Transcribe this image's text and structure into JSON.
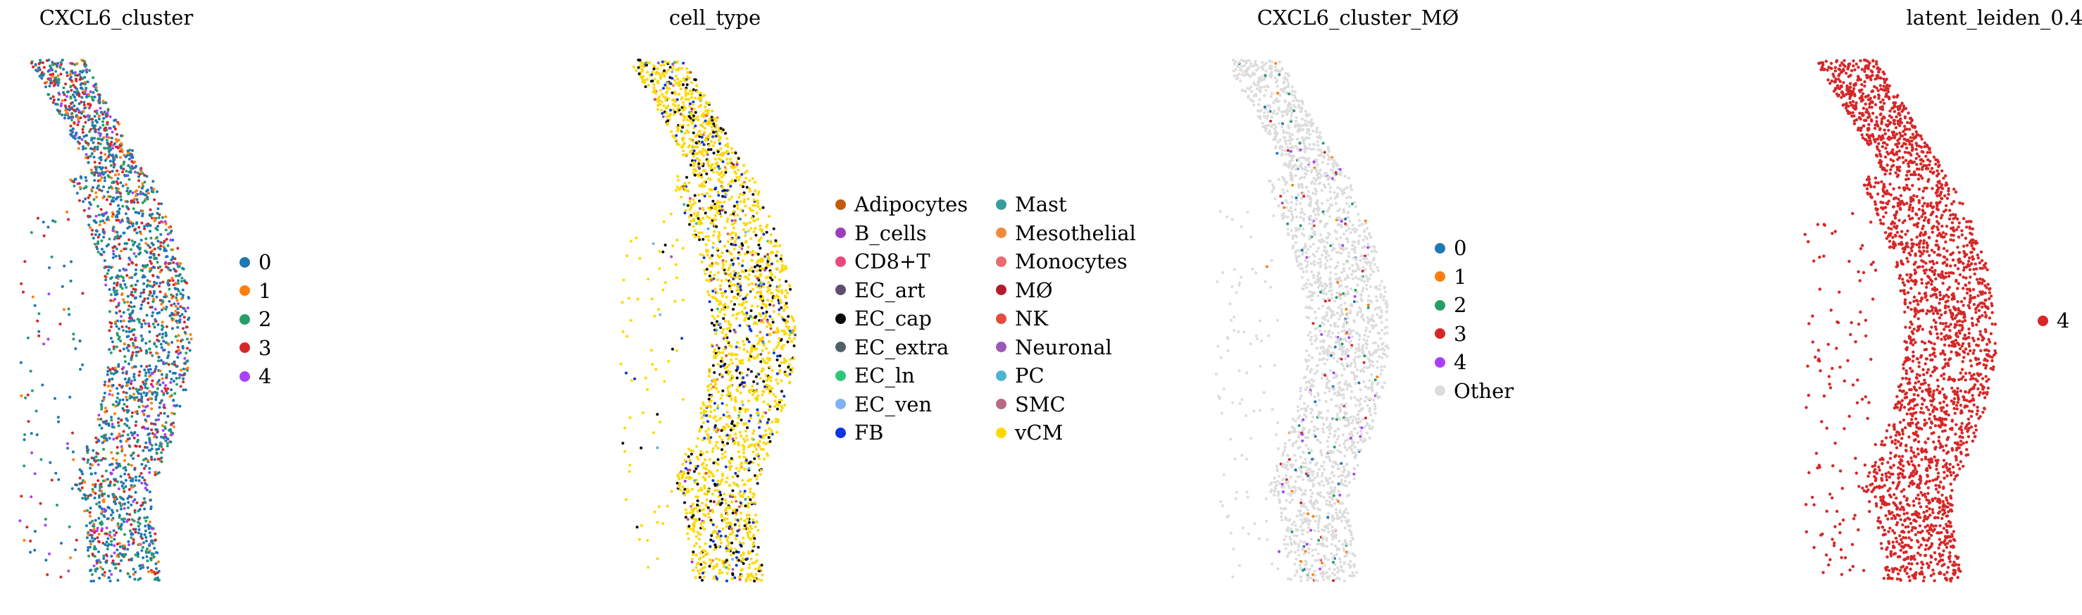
{
  "chart_data": [
    {
      "type": "scatter",
      "title": "CXCL6_cluster",
      "legend": "right",
      "series": [
        {
          "name": "0",
          "color": "#1f77b4"
        },
        {
          "name": "1",
          "color": "#ff7f0e"
        },
        {
          "name": "2",
          "color": "#279e68"
        },
        {
          "name": "3",
          "color": "#d62728"
        },
        {
          "name": "4",
          "color": "#aa40fc"
        }
      ]
    },
    {
      "type": "scatter",
      "title": "cell_type",
      "legend": "right",
      "series": [
        {
          "name": "Adipocytes",
          "color": "#c4580c"
        },
        {
          "name": "B_cells",
          "color": "#9b3fbf"
        },
        {
          "name": "CD8+T",
          "color": "#e8497a"
        },
        {
          "name": "EC_art",
          "color": "#5e4d6e"
        },
        {
          "name": "EC_cap",
          "color": "#0a0a0a"
        },
        {
          "name": "EC_extra",
          "color": "#50616b"
        },
        {
          "name": "EC_ln",
          "color": "#2ec77a"
        },
        {
          "name": "EC_ven",
          "color": "#7fb2f2"
        },
        {
          "name": "FB",
          "color": "#0b36e6"
        },
        {
          "name": "Mast",
          "color": "#389d9a"
        },
        {
          "name": "Mesothelial",
          "color": "#f28a3c"
        },
        {
          "name": "Monocytes",
          "color": "#e86c6c"
        },
        {
          "name": "MØ",
          "color": "#b31b2c"
        },
        {
          "name": "NK",
          "color": "#e34d3e"
        },
        {
          "name": "Neuronal",
          "color": "#9b59b6"
        },
        {
          "name": "PC",
          "color": "#4ab6d1"
        },
        {
          "name": "SMC",
          "color": "#b86a84"
        },
        {
          "name": "vCM",
          "color": "#ffd800"
        }
      ]
    },
    {
      "type": "scatter",
      "title": "CXCL6_cluster_MØ",
      "legend": "right",
      "series": [
        {
          "name": "0",
          "color": "#1f77b4"
        },
        {
          "name": "1",
          "color": "#ff7f0e"
        },
        {
          "name": "2",
          "color": "#279e68"
        },
        {
          "name": "3",
          "color": "#d62728"
        },
        {
          "name": "4",
          "color": "#aa40fc"
        },
        {
          "name": "Other",
          "color": "#dcdcdc"
        }
      ]
    },
    {
      "type": "scatter",
      "title": "latent_leiden_0.4",
      "legend": "right",
      "series": [
        {
          "name": "4",
          "color": "#d62728"
        }
      ]
    }
  ]
}
